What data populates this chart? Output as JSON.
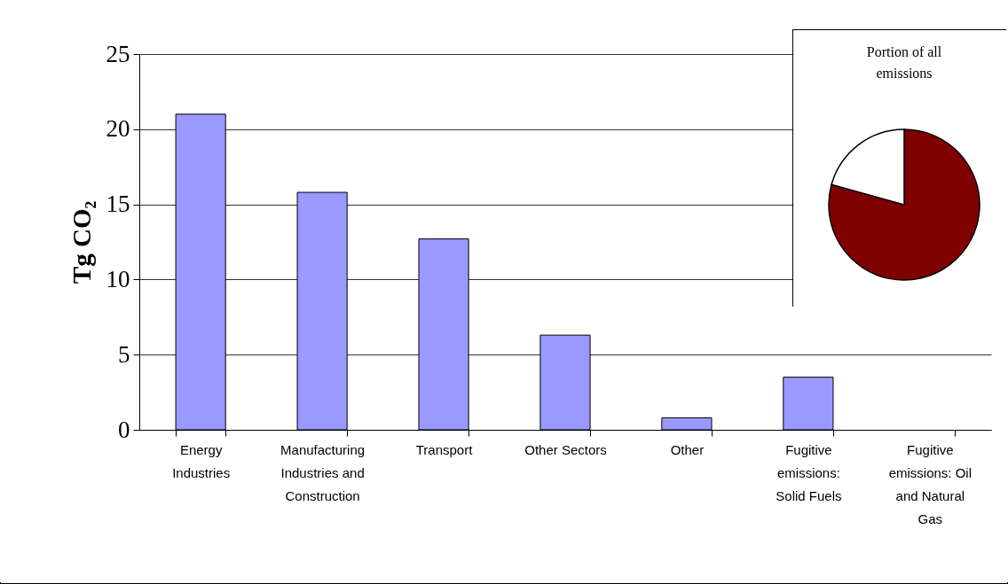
{
  "chart_data": [
    {
      "type": "bar",
      "ylabel": "Tg CO₂",
      "categories": [
        "Energy Industries",
        "Manufacturing Industries and Construction",
        "Transport",
        "Other Sectors",
        "Other",
        "Fugitive emissions: Solid Fuels",
        "Fugitive emissions: Oil and Natural Gas"
      ],
      "values": [
        21.0,
        15.8,
        12.7,
        6.3,
        0.8,
        3.5,
        0
      ],
      "color": "#9999ff",
      "ylim": [
        0,
        25
      ],
      "yticks": [
        0,
        5,
        10,
        15,
        20,
        25
      ],
      "grid": "y"
    },
    {
      "type": "pie",
      "title": "Portion of all emissions",
      "categories": [
        null,
        null
      ],
      "values": [
        79.3,
        20.7
      ],
      "colors": [
        "#800000",
        "#ffffff"
      ]
    }
  ]
}
